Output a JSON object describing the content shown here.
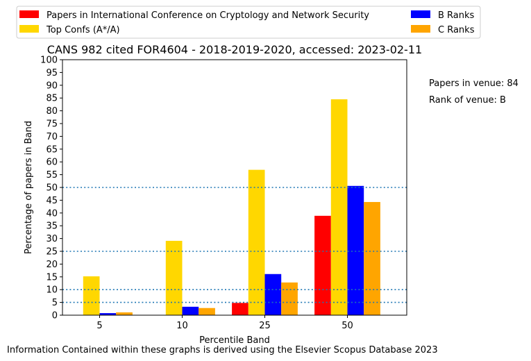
{
  "chart_data": {
    "type": "bar",
    "title": "CANS 982 cited FOR4604 - 2018-2019-2020, accessed: 2023-02-11",
    "xlabel": "Percentile Band",
    "ylabel": "Percentage of papers in Band",
    "categories": [
      "5",
      "10",
      "25",
      "50"
    ],
    "ylim": [
      0,
      100
    ],
    "yticks": [
      0,
      5,
      10,
      15,
      20,
      25,
      30,
      35,
      40,
      45,
      50,
      55,
      60,
      65,
      70,
      75,
      80,
      85,
      90,
      95,
      100
    ],
    "reference_lines": [
      5,
      10,
      25,
      50
    ],
    "legend_position": "top",
    "series": [
      {
        "name": "Papers in International Conference on Cryptology and Network Security",
        "color": "#ff0000",
        "values": [
          0,
          0,
          4.8,
          38.9
        ]
      },
      {
        "name": "Top Confs (A*/A)",
        "color": "#ffd700",
        "values": [
          15.2,
          29.1,
          56.9,
          84.5
        ]
      },
      {
        "name": "B Ranks",
        "color": "#0000ff",
        "values": [
          0.8,
          3.3,
          16.1,
          50.6
        ]
      },
      {
        "name": "C Ranks",
        "color": "#ffa500",
        "values": [
          1.1,
          2.8,
          12.8,
          44.3
        ]
      }
    ]
  },
  "side_info": {
    "papers_in_venue": "Papers in venue: 84",
    "rank_of_venue": "Rank of venue: B"
  },
  "footer": "Information Contained within these graphs is derived using the Elsevier Scopus Database 2023"
}
